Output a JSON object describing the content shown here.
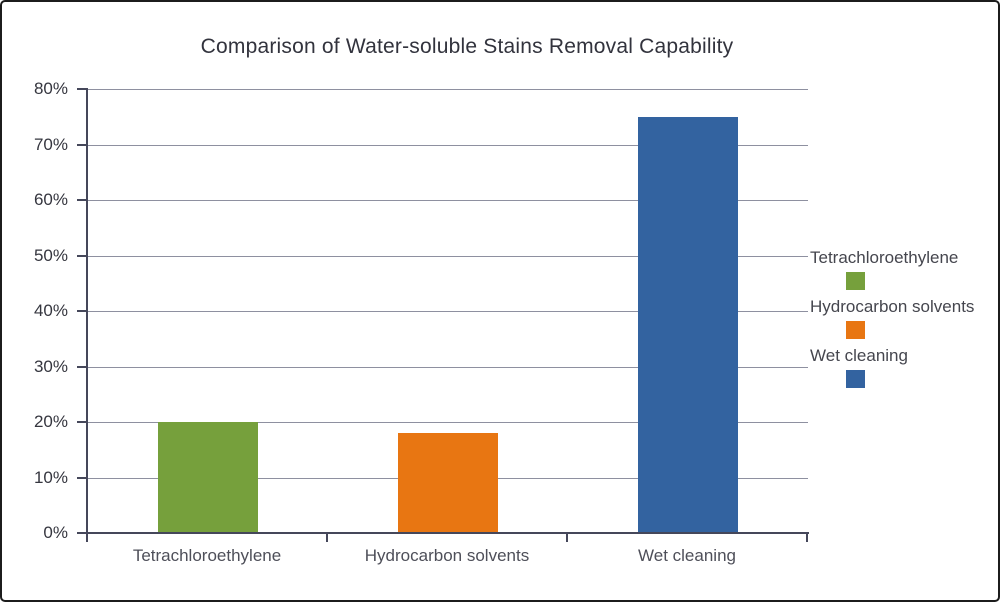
{
  "chart_data": {
    "type": "bar",
    "title": "Comparison of Water-soluble Stains Removal Capability",
    "categories": [
      "Tetrachloroethylene",
      "Hydrocarbon solvents",
      "Wet cleaning"
    ],
    "values": [
      20,
      18,
      75
    ],
    "unit": "%",
    "xlabel": "",
    "ylabel": "",
    "ylim": [
      0,
      80
    ],
    "ytick_step": 10,
    "ytick_labels": [
      "0%",
      "10%",
      "20%",
      "30%",
      "40%",
      "50%",
      "60%",
      "70%",
      "80%"
    ],
    "grid": true,
    "legend_position": "right",
    "series_colors": [
      "#76A03C",
      "#E87612",
      "#3363A0"
    ],
    "legend": [
      {
        "label": "Tetrachloroethylene",
        "color": "#76A03C"
      },
      {
        "label": "Hydrocarbon solvents",
        "color": "#E87612"
      },
      {
        "label": "Wet cleaning",
        "color": "#3363A0"
      }
    ],
    "colors": {
      "background": "#ffffff",
      "axis": "#45475a",
      "gridline": "#8e90a0",
      "title_text": "#32333d",
      "label_text": "#4e4f59",
      "frame_border": "#1c1c1c"
    }
  }
}
